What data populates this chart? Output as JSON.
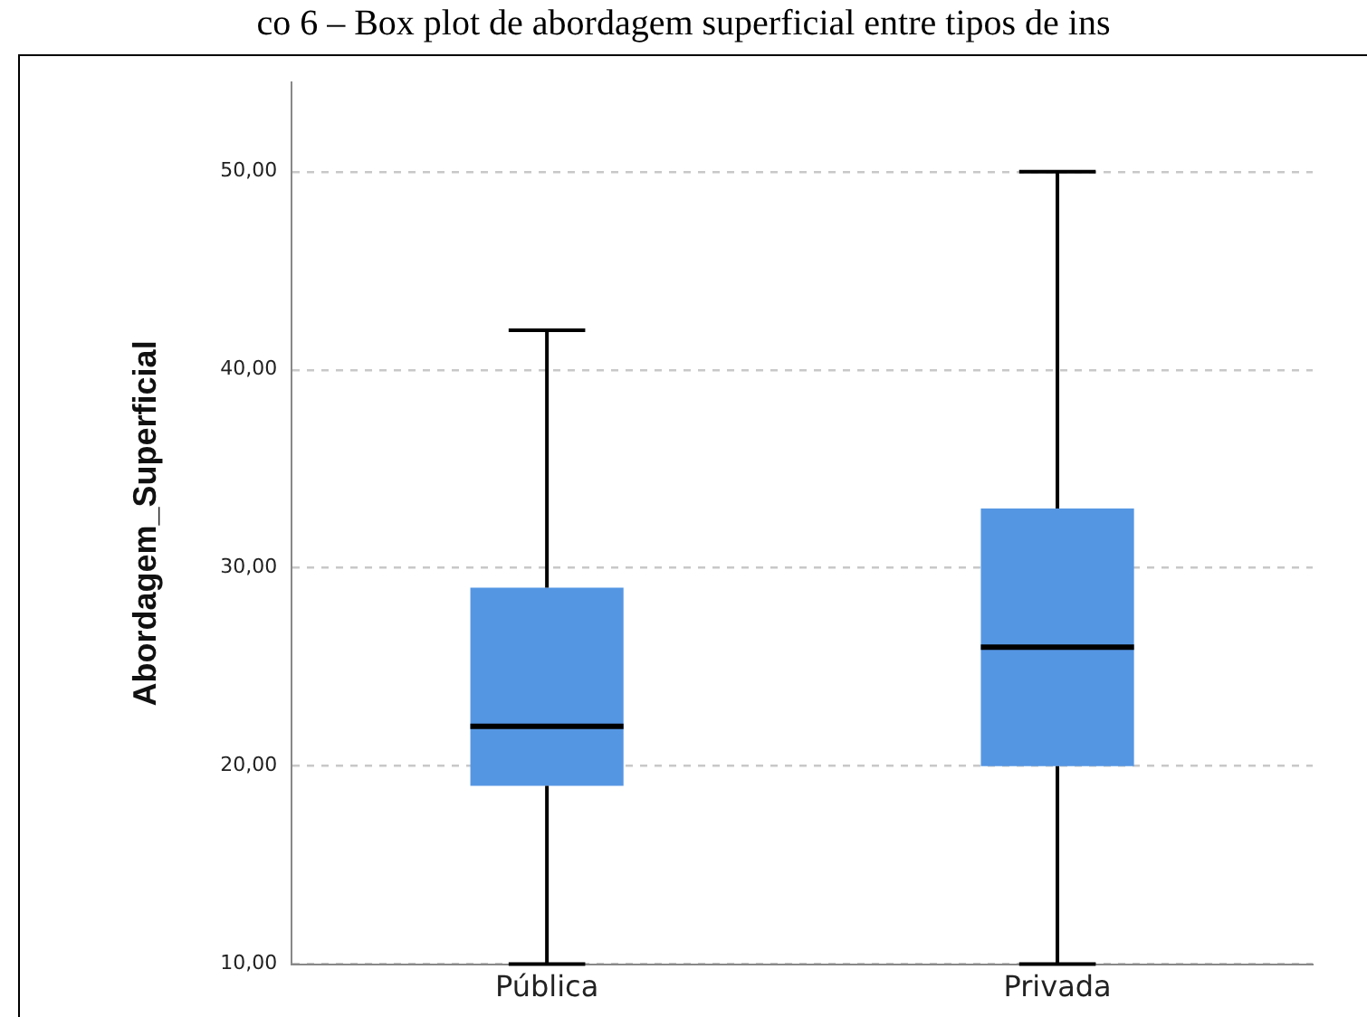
{
  "chart_data": {
    "type": "box",
    "title": "co 6 – Box plot de abordagem superficial entre tipos de ins",
    "ylabel": "Abordagem_Superficial",
    "categories": [
      "Pública",
      "Privada"
    ],
    "color": "#5596e3",
    "boxes": [
      {
        "low": 10,
        "q1": 19,
        "median": 22,
        "q3": 29,
        "high": 42
      },
      {
        "low": 10,
        "q1": 20,
        "median": 26,
        "q3": 33,
        "high": 50
      }
    ],
    "ylim": [
      10,
      54.5
    ],
    "yticks": [
      {
        "value": 10,
        "label": "10,00"
      },
      {
        "value": 20,
        "label": "20,00"
      },
      {
        "value": 30,
        "label": "30,00"
      },
      {
        "value": 40,
        "label": "40,00"
      },
      {
        "value": 50,
        "label": "50,00"
      }
    ],
    "grid": "y",
    "legend": false
  }
}
